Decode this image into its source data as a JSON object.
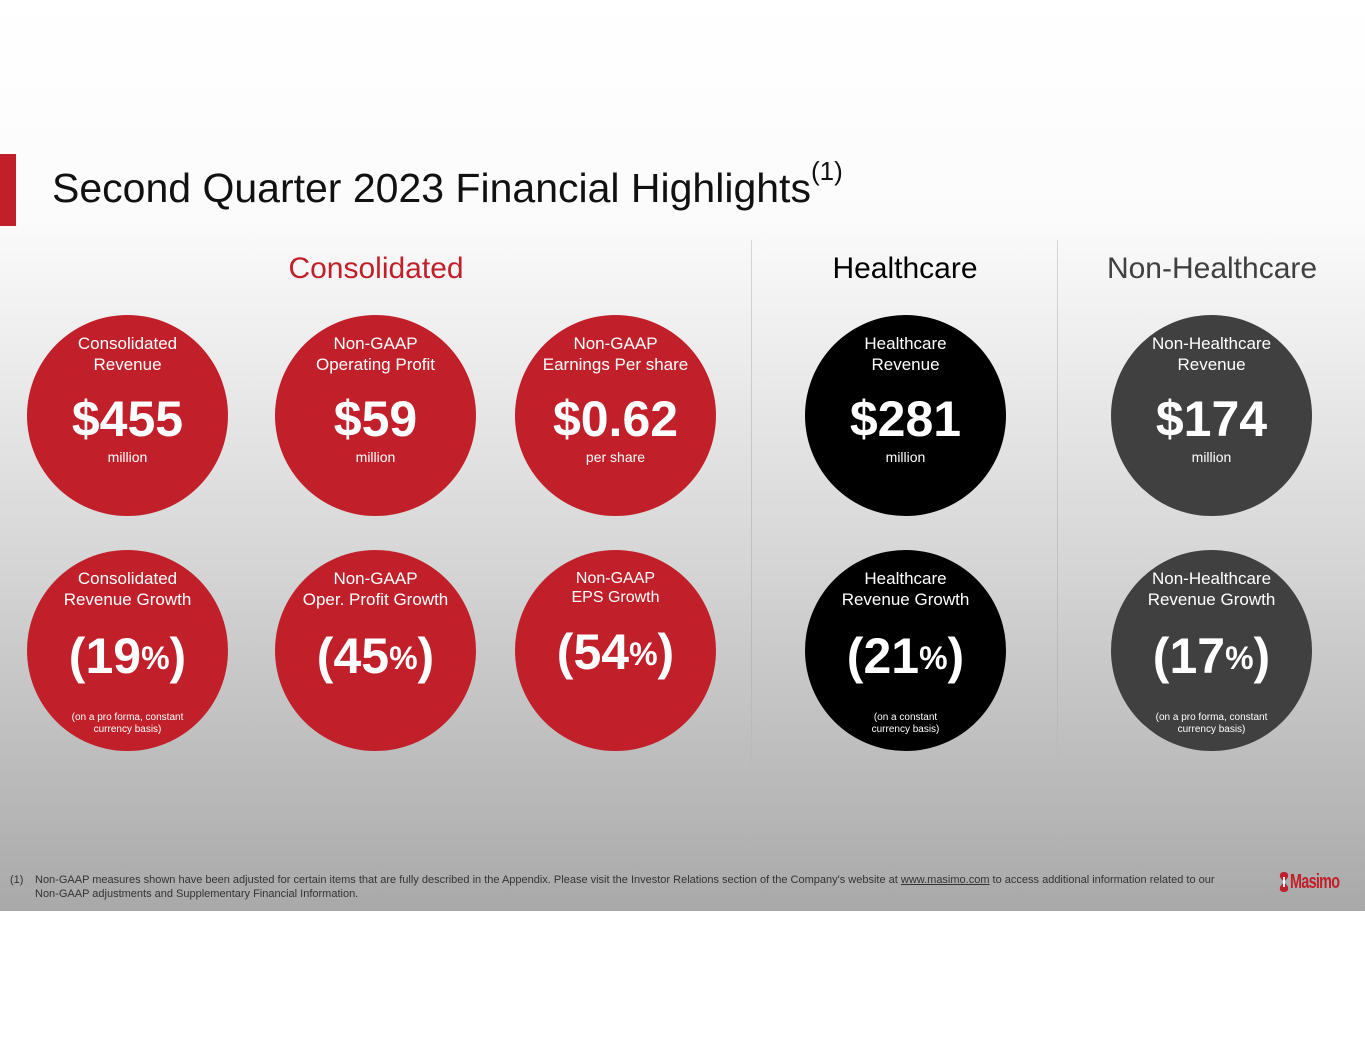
{
  "slide": {
    "title": "Second Quarter 2023 Financial Highlights",
    "title_sup": "(1)"
  },
  "sections": {
    "consolidated": "Consolidated",
    "healthcare": "Healthcare",
    "non_healthcare": "Non-Healthcare"
  },
  "metrics": {
    "cons_revenue": {
      "label": "Consolidated\nRevenue",
      "value": "$455",
      "unit": "million"
    },
    "op_profit": {
      "label": "Non-GAAP\nOperating Profit",
      "value": "$59",
      "unit": "million"
    },
    "eps": {
      "label": "Non-GAAP\nEarnings Per share",
      "value": "$0.62",
      "unit": "per share"
    },
    "hc_revenue": {
      "label": "Healthcare\nRevenue",
      "value": "$281",
      "unit": "million"
    },
    "nhc_revenue": {
      "label": "Non-Healthcare\nRevenue",
      "value": "$174",
      "unit": "million"
    },
    "cons_growth": {
      "label": "Consolidated\nRevenue Growth",
      "open": "(",
      "number": "19",
      "pct": "%",
      "close": ")",
      "note": "(on a pro forma, constant\ncurrency basis)"
    },
    "op_growth": {
      "label": "Non-GAAP\nOper. Profit Growth",
      "open": "(",
      "number": "45",
      "pct": "%",
      "close": ")"
    },
    "eps_growth": {
      "label": "Non-GAAP\nEPS Growth",
      "open": "(",
      "number": "54",
      "pct": "%",
      "close": ")"
    },
    "hc_growth": {
      "label": "Healthcare\nRevenue Growth",
      "open": "(",
      "number": "21",
      "pct": "%",
      "close": ")",
      "note": "(on a constant\ncurrency basis)"
    },
    "nhc_growth": {
      "label": "Non-Healthcare\nRevenue Growth",
      "open": "(",
      "number": "17",
      "pct": "%",
      "close": ")",
      "note": "(on a pro forma, constant\ncurrency basis)"
    }
  },
  "footnote": {
    "number": "(1)",
    "text_before": "Non-GAAP measures shown have been adjusted for certain items that are fully described in the Appendix. Please visit the Investor Relations section of the Company's website at ",
    "link": "www.masimo.com",
    "text_after": " to access additional information related to our Non-GAAP adjustments and Supplementary Financial Information."
  },
  "logo": {
    "text": "Masimo"
  },
  "colors": {
    "brand_red": "#c1202b",
    "healthcare_black": "#000000",
    "non_healthcare_gray": "#404040"
  }
}
